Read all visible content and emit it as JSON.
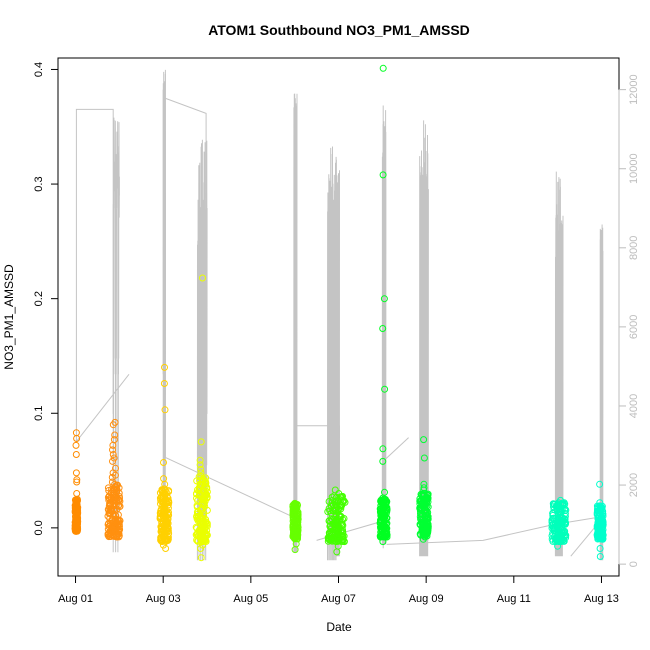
{
  "chart_data": {
    "type": "scatter",
    "title": "ATOM1 Southbound NO3_PM1_AMSSD",
    "xlabel": "Date",
    "ylabel": "NO3_PM1_AMSSD",
    "x_unit": "days since Aug 01",
    "xlim": [
      -0.4,
      12.4
    ],
    "ylim": [
      -0.042,
      0.41
    ],
    "x_ticks": [
      {
        "x": 0,
        "label": "Aug 01"
      },
      {
        "x": 2,
        "label": "Aug 03"
      },
      {
        "x": 4,
        "label": "Aug 05"
      },
      {
        "x": 6,
        "label": "Aug 07"
      },
      {
        "x": 8,
        "label": "Aug 09"
      },
      {
        "x": 10,
        "label": "Aug 11"
      },
      {
        "x": 12,
        "label": "Aug 13"
      }
    ],
    "y_ticks": [
      0.0,
      0.1,
      0.2,
      0.3,
      0.4
    ],
    "y_tick_labels": [
      "0.0",
      "0.1",
      "0.2",
      "0.3",
      "0.4"
    ],
    "y2_ticks": [
      0,
      2000,
      4000,
      6000,
      8000,
      10000,
      12000
    ],
    "y2_tick_labels": [
      "0",
      "2000",
      "4000",
      "6000",
      "8000",
      "10000",
      "12000"
    ],
    "y2_lim": [
      -300,
      12800
    ],
    "grid": false,
    "legend": "none",
    "colors": {
      "altitude_line": "#c4c4c4",
      "Aug 01": "#ff8c00",
      "Aug 02": "#ff9010",
      "Aug 03": "#ffd000",
      "Aug 04": "#eaff00",
      "Aug 06": "#66ff00",
      "Aug 07": "#44ff00",
      "Aug 08": "#00ff22",
      "Aug 09": "#00ff33",
      "Aug 12": "#00ffbb",
      "Aug 13": "#00ffcc"
    },
    "series": [
      {
        "date": "Aug 01",
        "x_center": 0.02,
        "x_spread": 0.03,
        "color": "#ff8c00",
        "bulk": [
          -0.003,
          0.025
        ],
        "points": [
          0.083,
          0.078,
          0.072,
          0.064,
          0.048,
          0.042,
          0.04,
          0.03,
          0.022,
          0.019,
          0.017,
          0.014,
          0.012,
          0.01,
          0.008,
          0.006,
          0.004,
          0.002,
          0.0,
          -0.002
        ]
      },
      {
        "date": "Aug 02",
        "x_center": 0.88,
        "x_spread": 0.14,
        "color": "#ff9010",
        "bulk": [
          -0.008,
          0.04
        ],
        "points": [
          0.092,
          0.09,
          0.081,
          0.077,
          0.072,
          0.068,
          0.064,
          0.061,
          0.058,
          0.052,
          0.048,
          0.046,
          0.044,
          0.04,
          0.036,
          0.033,
          0.03,
          0.028
        ]
      },
      {
        "date": "Aug 03",
        "x_center": 2.03,
        "x_spread": 0.1,
        "color": "#ffd000",
        "bulk": [
          -0.012,
          0.035
        ],
        "points": [
          0.14,
          0.126,
          0.103,
          0.057,
          0.043,
          0.038,
          0.034,
          0.03,
          -0.015,
          -0.018
        ]
      },
      {
        "date": "Aug 04",
        "x_center": 2.88,
        "x_spread": 0.13,
        "color": "#eaff00",
        "bulk": [
          -0.012,
          0.045
        ],
        "points": [
          0.218,
          0.075,
          0.059,
          0.055,
          0.051,
          0.048,
          0.045,
          0.04,
          -0.026,
          -0.018,
          -0.015
        ]
      },
      {
        "date": "Aug 06",
        "x_center": 5.02,
        "x_spread": 0.06,
        "color": "#66ff00",
        "bulk": [
          -0.01,
          0.022
        ],
        "points": [
          0.02,
          0.018,
          -0.014,
          -0.019
        ]
      },
      {
        "date": "Aug 07",
        "x_center": 5.95,
        "x_spread": 0.2,
        "color": "#44ff00",
        "bulk": [
          -0.012,
          0.028
        ],
        "points": [
          0.033,
          0.03,
          0.028,
          -0.016,
          -0.021
        ]
      },
      {
        "date": "Aug 08",
        "x_center": 7.03,
        "x_spread": 0.08,
        "color": "#00ff22",
        "bulk": [
          -0.008,
          0.025
        ],
        "points": [
          0.401,
          0.308,
          0.2,
          0.174,
          0.121,
          0.069,
          0.058,
          0.031,
          0.026,
          -0.012
        ]
      },
      {
        "date": "Aug 09",
        "x_center": 7.95,
        "x_spread": 0.1,
        "color": "#00ff33",
        "bulk": [
          -0.008,
          0.03
        ],
        "points": [
          0.077,
          0.061,
          0.038,
          0.035,
          0.033,
          0.03,
          -0.01
        ]
      },
      {
        "date": "Aug 12",
        "x_center": 11.03,
        "x_spread": 0.16,
        "color": "#00ffbb",
        "bulk": [
          -0.012,
          0.022
        ],
        "points": [
          0.024,
          0.022,
          -0.012,
          -0.016
        ]
      },
      {
        "date": "Aug 13",
        "x_center": 11.97,
        "x_spread": 0.07,
        "color": "#00ffcc",
        "bulk": [
          -0.01,
          0.02
        ],
        "points": [
          0.038,
          0.022,
          -0.018,
          -0.025
        ]
      }
    ],
    "altitude_series": {
      "axis": "right",
      "segments": [
        {
          "x": [
            0.02,
            0.02,
            0.02,
            0.02,
            0.86,
            0.86
          ],
          "y": [
            3100,
            7000,
            11500,
            11500,
            11500,
            3800
          ]
        },
        {
          "x": [
            0.02,
            1.22
          ],
          "y": [
            3100,
            4800
          ]
        },
        {
          "x": [
            2.0,
            2.0,
            2.0,
            2.98,
            2.98
          ],
          "y": [
            4800,
            12000,
            11800,
            11400,
            1400
          ]
        },
        {
          "x": [
            2.05,
            2.05,
            2.05,
            4.95
          ],
          "y": [
            12500,
            2700,
            2700,
            1200
          ]
        },
        {
          "x": [
            5.0,
            5.0,
            5.0,
            6.02,
            6.02
          ],
          "y": [
            700,
            11900,
            3500,
            3500,
            800
          ]
        },
        {
          "x": [
            5.5,
            7.05
          ],
          "y": [
            600,
            1100
          ]
        },
        {
          "x": [
            7.02,
            7.02,
            7.02,
            7.02
          ],
          "y": [
            400,
            11600,
            2600,
            2600
          ]
        },
        {
          "x": [
            7.02,
            7.6
          ],
          "y": [
            2600,
            3200
          ]
        },
        {
          "x": [
            7.1,
            9.3,
            10.9,
            12.0
          ],
          "y": [
            500,
            600,
            1000,
            1200
          ]
        },
        {
          "x": [
            11.3,
            11.9
          ],
          "y": [
            200,
            1000
          ]
        }
      ],
      "spikes": [
        {
          "x_start": 0.86,
          "x_end": 1.0,
          "lows": [
            300,
            700,
            1000,
            4800,
            5200,
            9000,
            9500,
            9800,
            10000,
            10500,
            11200
          ],
          "highs": [
            9600,
            10200,
            11500,
            11300,
            9800,
            10700,
            11400
          ]
        },
        {
          "x_start": 2.0,
          "x_end": 2.05,
          "lows": [
            800,
            1500,
            3200
          ],
          "highs": [
            12500,
            12000,
            11000
          ]
        },
        {
          "x_start": 2.78,
          "x_end": 3.0,
          "lows": [
            100,
            500,
            1200,
            2500,
            3800
          ],
          "highs": [
            9100,
            9400,
            9700,
            10800,
            11300,
            9900,
            7600,
            11500
          ]
        },
        {
          "x_start": 4.98,
          "x_end": 5.05,
          "lows": [
            300,
            900
          ],
          "highs": [
            11900,
            11900,
            11900
          ]
        },
        {
          "x_start": 5.75,
          "x_end": 5.95,
          "lows": [
            100,
            500,
            900,
            1500
          ],
          "highs": [
            9500,
            9600,
            10200,
            9800,
            11100,
            10500
          ]
        },
        {
          "x_start": 5.95,
          "x_end": 6.02,
          "lows": [
            200,
            800
          ],
          "highs": [
            8000,
            7400,
            10000
          ]
        },
        {
          "x_start": 7.0,
          "x_end": 7.08,
          "lows": [
            500,
            1800
          ],
          "highs": [
            11600,
            10700
          ]
        },
        {
          "x_start": 7.85,
          "x_end": 8.05,
          "lows": [
            200,
            600,
            1400
          ],
          "highs": [
            10500,
            11300,
            11000,
            10800,
            10500,
            10000
          ]
        },
        {
          "x_start": 10.95,
          "x_end": 11.12,
          "lows": [
            200,
            600,
            1000
          ],
          "highs": [
            8700,
            9000,
            9200,
            10000,
            9800
          ]
        },
        {
          "x_start": 11.97,
          "x_end": 12.03,
          "lows": [
            100,
            700
          ],
          "highs": [
            8700,
            8600
          ]
        }
      ]
    }
  }
}
